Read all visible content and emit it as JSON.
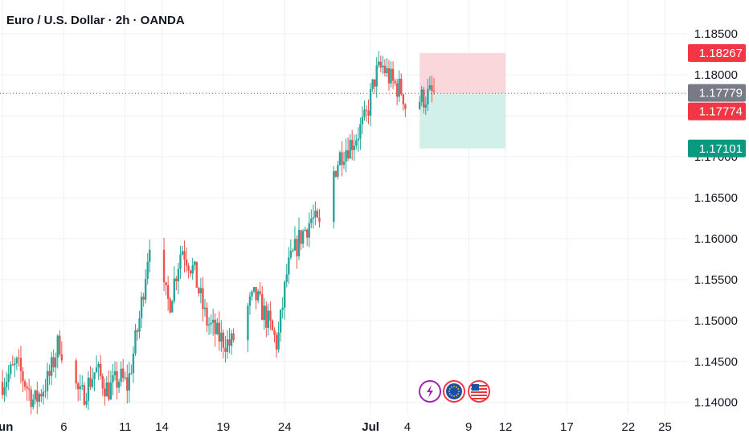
{
  "header": {
    "title": "Euro / U.S. Dollar · 2h · OANDA"
  },
  "colors": {
    "up": "#26a69a",
    "down": "#ef5350",
    "grid": "#eef0f3",
    "stop_zone": "#f9d0d3",
    "target_zone": "#cdeee8",
    "tag_red": "#f23645",
    "tag_gray": "#787b86",
    "tag_green": "#089981"
  },
  "events": [
    {
      "icon": "lightning-icon",
      "color": "#9c27b0"
    },
    {
      "icon": "eu-flag-icon",
      "color": "#f23645"
    },
    {
      "icon": "us-flag-icon",
      "color": "#f23645"
    }
  ],
  "chart_data": {
    "type": "candlestick",
    "title": "Euro / U.S. Dollar · 2h · OANDA",
    "y_ticks": [
      "1.18500",
      "1.18000",
      "1.17500",
      "1.17000",
      "1.16500",
      "1.16000",
      "1.15500",
      "1.15000",
      "1.14500",
      "1.14000"
    ],
    "y_tick_values": [
      1.185,
      1.18,
      1.175,
      1.17,
      1.165,
      1.16,
      1.155,
      1.15,
      1.145,
      1.14
    ],
    "ylim": [
      1.1385,
      1.1862
    ],
    "x_ticks": [
      "Jun",
      "6",
      "11",
      "14",
      "19",
      "24",
      "Jul",
      "4",
      "9",
      "12",
      "17",
      "22",
      "25"
    ],
    "x_tick_days": [
      1,
      6,
      11,
      14,
      19,
      24,
      31,
      34,
      39,
      42,
      47,
      52,
      55
    ],
    "xlim_days": [
      0.8,
      56.8
    ],
    "current_price_line": 1.17774,
    "price_tags": [
      {
        "label": "1.18267",
        "value": 1.18267,
        "kind": "red"
      },
      {
        "label": "1.17779",
        "value": 1.17779,
        "kind": "gray"
      },
      {
        "label": "1.17774",
        "value": 1.17774,
        "kind": "red"
      },
      {
        "label": "1.17101",
        "value": 1.17101,
        "kind": "green"
      }
    ],
    "position": {
      "type": "short",
      "entry": 1.17774,
      "stop": 1.18267,
      "target": 1.17101,
      "start_day": 35.0,
      "end_day": 42.0
    },
    "price_path": [
      {
        "day": 1.0,
        "price": 1.1425
      },
      {
        "day": 2.2,
        "price": 1.1445
      },
      {
        "day": 3.6,
        "price": 1.14
      },
      {
        "day": 4.8,
        "price": 1.143
      },
      {
        "day": 5.6,
        "price": 1.1475
      },
      {
        "day": 6.4,
        "price": 1.144
      },
      {
        "day": 7.4,
        "price": 1.1405
      },
      {
        "day": 8.6,
        "price": 1.144
      },
      {
        "day": 9.6,
        "price": 1.1415
      },
      {
        "day": 10.6,
        "price": 1.143
      },
      {
        "day": 11.2,
        "price": 1.142
      },
      {
        "day": 12.2,
        "price": 1.1505
      },
      {
        "day": 13.0,
        "price": 1.16
      },
      {
        "day": 13.8,
        "price": 1.1545
      },
      {
        "day": 14.6,
        "price": 1.152
      },
      {
        "day": 15.6,
        "price": 1.159
      },
      {
        "day": 16.6,
        "price": 1.156
      },
      {
        "day": 17.6,
        "price": 1.15
      },
      {
        "day": 18.6,
        "price": 1.148
      },
      {
        "day": 19.6,
        "price": 1.147
      },
      {
        "day": 20.6,
        "price": 1.1505
      },
      {
        "day": 21.6,
        "price": 1.153
      },
      {
        "day": 22.6,
        "price": 1.15
      },
      {
        "day": 23.4,
        "price": 1.147
      },
      {
        "day": 24.2,
        "price": 1.156
      },
      {
        "day": 25.2,
        "price": 1.16
      },
      {
        "day": 26.2,
        "price": 1.1625
      },
      {
        "day": 27.0,
        "price": 1.161
      },
      {
        "day": 27.6,
        "price": 1.1665
      },
      {
        "day": 28.6,
        "price": 1.1705
      },
      {
        "day": 29.6,
        "price": 1.172
      },
      {
        "day": 30.6,
        "price": 1.1745
      },
      {
        "day": 31.4,
        "price": 1.18
      },
      {
        "day": 32.0,
        "price": 1.181
      },
      {
        "day": 32.8,
        "price": 1.179
      },
      {
        "day": 33.6,
        "price": 1.178
      },
      {
        "day": 34.2,
        "price": 1.1735
      },
      {
        "day": 35.0,
        "price": 1.177
      },
      {
        "day": 36.2,
        "price": 1.1778
      }
    ]
  }
}
